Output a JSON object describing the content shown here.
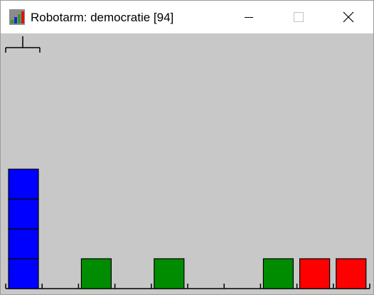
{
  "window": {
    "title": "Robotarm: democratie [94]",
    "app_icon": "bar-chart-icon",
    "controls": [
      "minimize-icon",
      "maximize-icon",
      "close-icon"
    ]
  },
  "stage": {
    "background": "#c8c8c8",
    "slot_count": 10,
    "arm_slot": 0,
    "colors": {
      "blue": "#0000ff",
      "green": "#008c00",
      "red": "#ff0000"
    },
    "stacks": [
      [
        "blue",
        "blue",
        "blue",
        "blue"
      ],
      [],
      [
        "green"
      ],
      [],
      [
        "green"
      ],
      [],
      [],
      [
        "green"
      ],
      [
        "red"
      ],
      [
        "red"
      ]
    ]
  }
}
